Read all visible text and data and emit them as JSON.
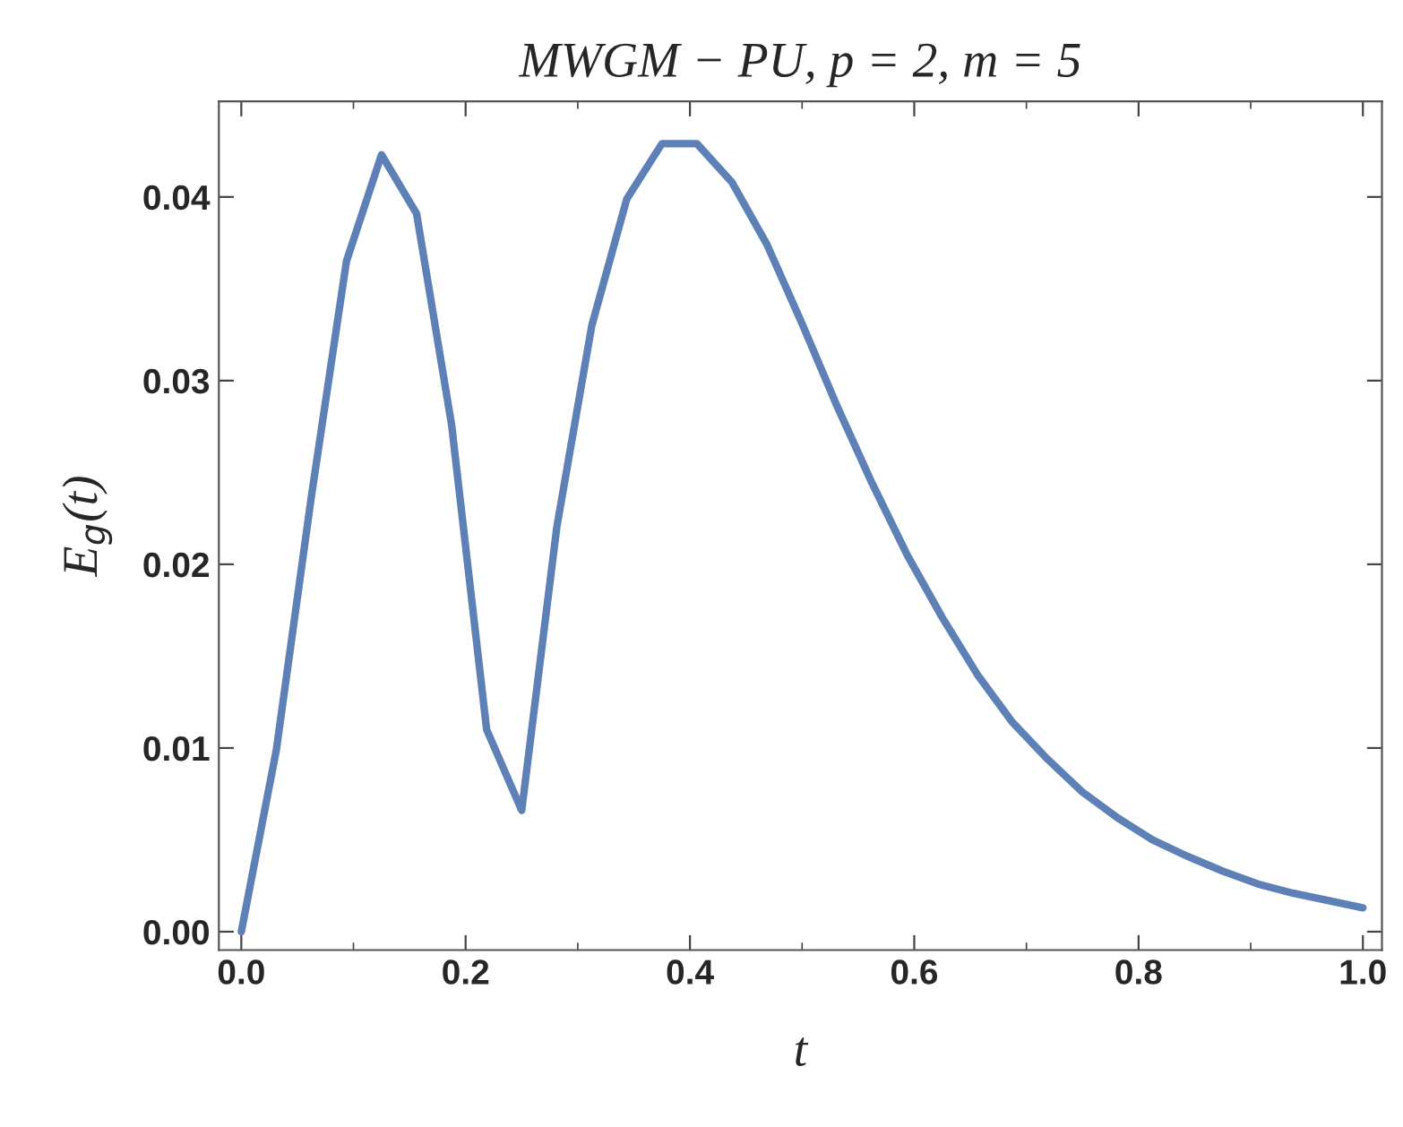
{
  "chart_data": {
    "type": "line",
    "title": "MWGM − PU, p = 2, m = 5",
    "xlabel": "t",
    "ylabel": "E$_{g}$(t)",
    "x": [
      0,
      0.03125,
      0.0625,
      0.09375,
      0.125,
      0.15625,
      0.1875,
      0.21875,
      0.25,
      0.28125,
      0.3125,
      0.34375,
      0.375,
      0.40625,
      0.4375,
      0.46875,
      0.5,
      0.53125,
      0.5625,
      0.59375,
      0.625,
      0.65625,
      0.6875,
      0.71875,
      0.75,
      0.78125,
      0.8125,
      0.84375,
      0.875,
      0.90625,
      0.9375,
      0.96875,
      1.0
    ],
    "series": [
      {
        "color": "#5d81b7",
        "values": [
          0,
          0.0099,
          0.0237,
          0.0365,
          0.0423,
          0.0391,
          0.0276,
          0.011,
          0.0066,
          0.022,
          0.033,
          0.0399,
          0.0429,
          0.0429,
          0.0408,
          0.0374,
          0.0331,
          0.0286,
          0.0244,
          0.0205,
          0.0171,
          0.014,
          0.0114,
          0.0094,
          0.0076,
          0.0062,
          0.005,
          0.0041,
          0.0033,
          0.0026,
          0.0021,
          0.0017,
          0.0013
        ]
      }
    ],
    "xlim": [
      -0.02,
      1.017
    ],
    "ylim": [
      -0.001,
      0.0452
    ],
    "xticks": [
      {
        "value": 0,
        "label": "0.0"
      },
      0.2,
      0.4,
      0.6,
      0.8,
      {
        "value": 1.0,
        "label": "1.0"
      },
      {
        "value": 0.1,
        "label": null
      },
      {
        "value": 0.3,
        "label": null
      },
      {
        "value": 0.5,
        "label": null
      },
      {
        "value": 0.7,
        "label": null
      },
      {
        "value": 0.9,
        "label": null
      }
    ],
    "yticks": [
      {
        "value": 0,
        "label": "0.00"
      },
      {
        "value": 0.01,
        "label": "0.01"
      },
      {
        "value": 0.02,
        "label": "0.02"
      },
      {
        "value": 0.03,
        "label": "0.03"
      },
      {
        "value": 0.04,
        "label": "0.04"
      }
    ],
    "grid": false,
    "marker": "none",
    "line_style": "solid"
  }
}
